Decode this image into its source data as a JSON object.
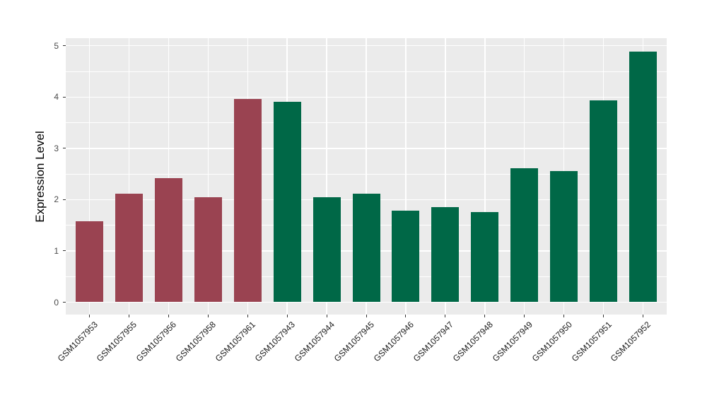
{
  "figure": {
    "background": "#FFFFFF"
  },
  "chart_data": {
    "type": "bar",
    "title": "",
    "xlabel": "",
    "ylabel": "Expression Level",
    "ylim": [
      0,
      5
    ],
    "yticks": [
      0,
      1,
      2,
      3,
      4,
      5
    ],
    "minor_yticks": [
      0.5,
      1.5,
      2.5,
      3.5,
      4.5
    ],
    "grid": "major and minor horizontal white lines, vertical white line at each category center",
    "legend_position": "none",
    "panel_bg": "#EBEBEB",
    "grid_color": "#FFFFFF",
    "tick_color": "#333333",
    "axis_text_color": "#4A4A4A",
    "categories": [
      "GSM1057953",
      "GSM1057955",
      "GSM1057956",
      "GSM1057958",
      "GSM1057961",
      "GSM1057943",
      "GSM1057944",
      "GSM1057945",
      "GSM1057946",
      "GSM1057947",
      "GSM1057948",
      "GSM1057949",
      "GSM1057950",
      "GSM1057951",
      "GSM1057952"
    ],
    "values": [
      1.58,
      2.12,
      2.42,
      2.04,
      3.96,
      3.91,
      2.04,
      2.12,
      1.79,
      1.86,
      1.76,
      2.61,
      2.55,
      3.93,
      4.88
    ],
    "bar_color_groups": [
      0,
      0,
      0,
      0,
      0,
      1,
      1,
      1,
      1,
      1,
      1,
      1,
      1,
      1,
      1
    ],
    "group_colors": [
      "#9A4351",
      "#006847"
    ]
  }
}
